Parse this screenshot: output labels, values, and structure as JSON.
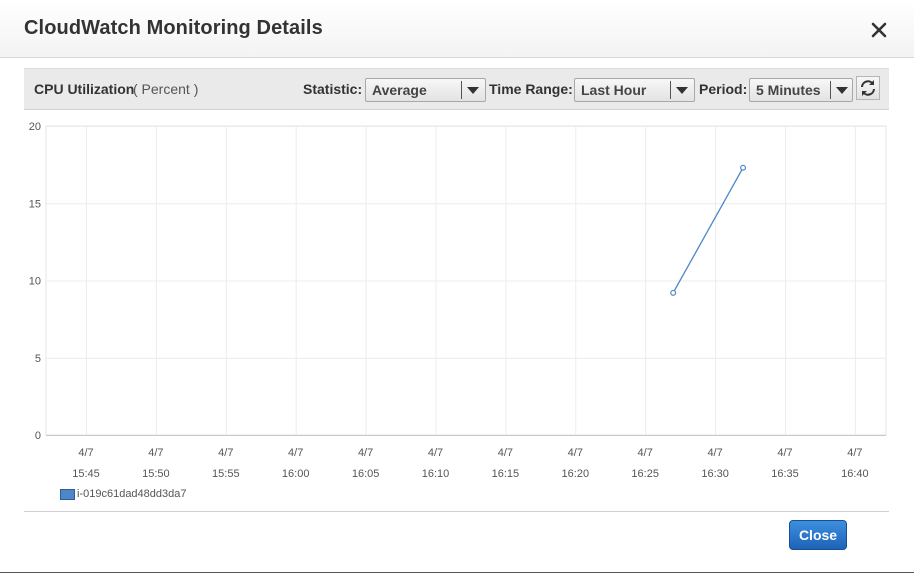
{
  "dialog": {
    "title": "CloudWatch Monitoring Details",
    "close_icon": "close-icon"
  },
  "toolbar": {
    "metric_name": "CPU Utilization",
    "metric_unit": "( Percent )",
    "statistic_label": "Statistic:",
    "statistic_value": "Average",
    "time_range_label": "Time Range:",
    "time_range_value": "Last Hour",
    "period_label": "Period:",
    "period_value": "5 Minutes",
    "refresh_icon": "refresh-icon",
    "dropdown_icon": "caret-down-icon"
  },
  "chart_data": {
    "type": "line",
    "title": "",
    "xlabel": "",
    "ylabel": "",
    "ylim": [
      0,
      20
    ],
    "yticks": [
      0,
      5,
      10,
      15,
      20
    ],
    "x_ticks": [
      {
        "date": "4/7",
        "time": "15:45"
      },
      {
        "date": "4/7",
        "time": "15:50"
      },
      {
        "date": "4/7",
        "time": "15:55"
      },
      {
        "date": "4/7",
        "time": "16:00"
      },
      {
        "date": "4/7",
        "time": "16:05"
      },
      {
        "date": "4/7",
        "time": "16:10"
      },
      {
        "date": "4/7",
        "time": "16:15"
      },
      {
        "date": "4/7",
        "time": "16:20"
      },
      {
        "date": "4/7",
        "time": "16:25"
      },
      {
        "date": "4/7",
        "time": "16:30"
      },
      {
        "date": "4/7",
        "time": "16:35"
      },
      {
        "date": "4/7",
        "time": "16:40"
      }
    ],
    "grid": true,
    "legend_position": "bottom-left",
    "series": [
      {
        "name": "i-019c61dad48dd3da7",
        "color": "#4d87c7",
        "points": [
          {
            "x": "16:27",
            "y": 9.2
          },
          {
            "x": "16:32",
            "y": 17.3
          }
        ]
      }
    ]
  },
  "footer": {
    "close_label": "Close"
  },
  "colors": {
    "accent": "#1d63b8",
    "series": "#4d87c7"
  }
}
